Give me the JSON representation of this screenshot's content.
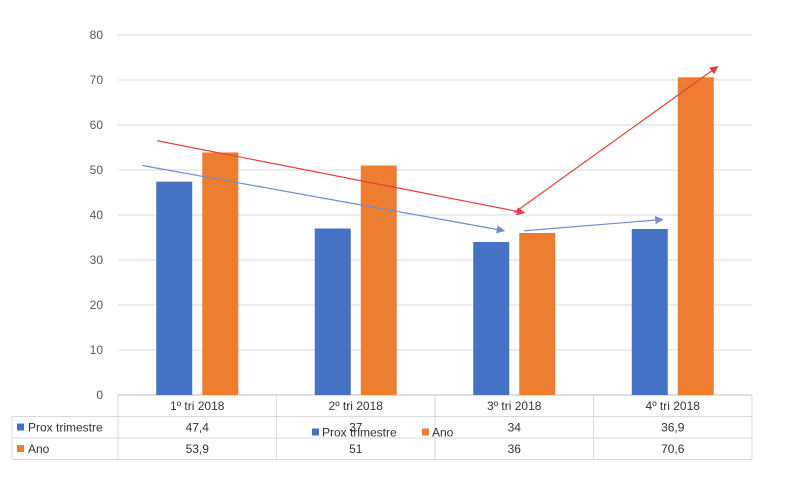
{
  "chart_data": {
    "type": "bar",
    "title": "",
    "xlabel": "",
    "ylabel": "",
    "ylim": [
      0,
      80
    ],
    "yticks": [
      0,
      10,
      20,
      30,
      40,
      50,
      60,
      70,
      80
    ],
    "grid": true,
    "categories": [
      "1º tri 2018",
      "2º tri 2018",
      "3º tri 2018",
      "4º tri 2018"
    ],
    "series": [
      {
        "name": "Prox trimestre",
        "color": "#4472C4",
        "values": [
          47.4,
          37,
          34,
          36.9
        ],
        "labels": [
          "47,4",
          "37",
          "34",
          "36,9"
        ]
      },
      {
        "name": "Ano",
        "color": "#ED7D31",
        "values": [
          53.9,
          51,
          36,
          70.6
        ],
        "labels": [
          "53,9",
          "51",
          "36",
          "70,6"
        ]
      }
    ],
    "legend": {
      "position": "bottom",
      "entries": [
        "Prox trimestre",
        "Ano"
      ]
    },
    "data_table": true,
    "annotations": [
      {
        "type": "arrow",
        "color": "#E04040",
        "from": {
          "x": "1º tri 2018",
          "y": 56.5
        },
        "to": {
          "x": "3º tri 2018",
          "y": 40.5
        }
      },
      {
        "type": "arrow",
        "color": "#E04040",
        "from": {
          "x": "3º tri 2018",
          "y": 40.5
        },
        "to": {
          "x": "4º tri 2018",
          "y": 73
        }
      },
      {
        "type": "arrow",
        "color": "#6D8FCC",
        "from": {
          "x": "1º tri 2018",
          "y": 51
        },
        "to": {
          "x": "3º tri 2018",
          "y": 36.5
        }
      },
      {
        "type": "arrow",
        "color": "#6D8FCC",
        "from": {
          "x": "3º tri 2018",
          "y": 36.5
        },
        "to": {
          "x": "4º tri 2018",
          "y": 39
        }
      }
    ]
  }
}
